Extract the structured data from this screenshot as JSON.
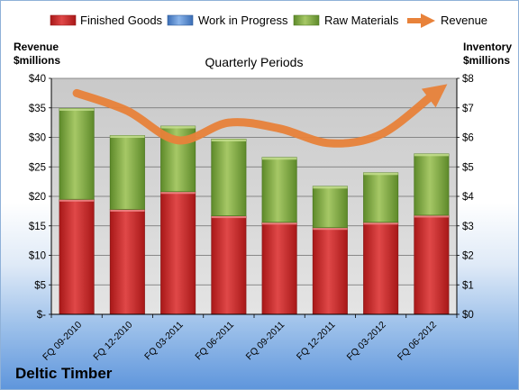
{
  "company": "Deltic Timber",
  "chart_data": {
    "type": "bar",
    "stacked": true,
    "title": "Quarterly Periods",
    "ylabel_left": [
      "Revenue",
      "$millions"
    ],
    "ylabel_right": [
      "Inventory",
      "$millions"
    ],
    "categories": [
      "FQ 09-2010",
      "FQ 12-2010",
      "FQ 03-2011",
      "FQ 06-2011",
      "FQ 09-2011",
      "FQ 12-2011",
      "FQ 03-2012",
      "FQ 06-2012"
    ],
    "series": [
      {
        "name": "Finished Goods",
        "color": "#d32f2f",
        "values": [
          19.5,
          17.8,
          20.8,
          16.7,
          15.6,
          14.7,
          15.6,
          16.8
        ]
      },
      {
        "name": "Work in Progress",
        "color": "#5b8fd4",
        "values": [
          0,
          0,
          0,
          0,
          0,
          0,
          0,
          0
        ]
      },
      {
        "name": "Raw Materials",
        "color": "#8db44a",
        "values": [
          15.4,
          12.5,
          11.1,
          13.0,
          11.0,
          7.0,
          8.4,
          10.4
        ]
      }
    ],
    "revenue": {
      "name": "Revenue",
      "color": "#e8823a",
      "values": [
        37.5,
        34.5,
        29.5,
        32.5,
        31.5,
        29.0,
        30.5,
        37.0
      ]
    },
    "ylim": [
      0,
      40
    ],
    "ylim_right": [
      0,
      8
    ],
    "yticks_left": [
      "$-",
      "$5",
      "$10",
      "$15",
      "$20",
      "$25",
      "$30",
      "$35",
      "$40"
    ],
    "yticks_right": [
      "$0",
      "$1",
      "$2",
      "$3",
      "$4",
      "$5",
      "$6",
      "$7",
      "$8"
    ],
    "grid": true,
    "legend_position": "top"
  }
}
